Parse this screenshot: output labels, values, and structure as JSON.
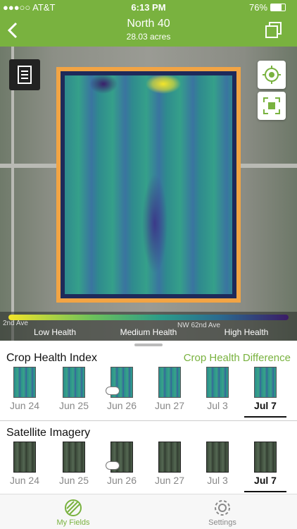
{
  "status_bar": {
    "carrier": "●●●○○ AT&T",
    "time": "6:13 PM",
    "battery": "76%"
  },
  "header": {
    "title": "North 40",
    "subtitle": "28.03 acres"
  },
  "map": {
    "streets": [
      "2nd Ave",
      "NW 62nd Ave"
    ],
    "legend": [
      "Low Health",
      "Medium Health",
      "High Health"
    ]
  },
  "crop_health": {
    "title": "Crop Health Index",
    "link": "Crop Health Difference",
    "dates": [
      "Jun 24",
      "Jun 25",
      "Jun 26",
      "Jun 27",
      "Jul 3",
      "Jul 7"
    ]
  },
  "satellite": {
    "title": "Satellite Imagery",
    "dates": [
      "Jun 24",
      "Jun 25",
      "Jun 26",
      "Jun 27",
      "Jul 3",
      "Jul 7"
    ]
  },
  "tabs": [
    "My Fields",
    "Settings"
  ]
}
